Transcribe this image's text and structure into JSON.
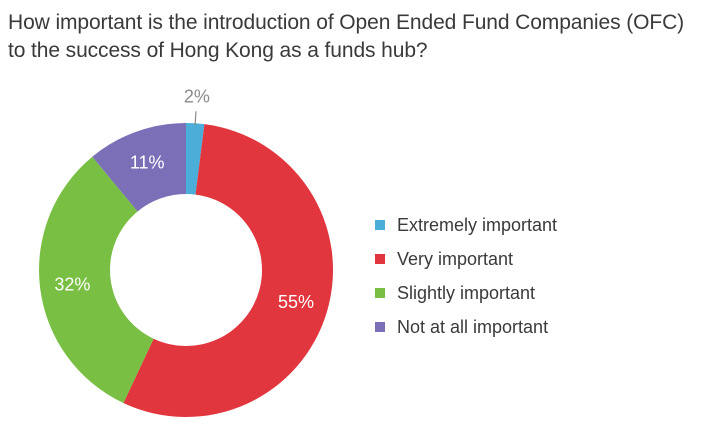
{
  "title": {
    "line1": "How important is the introduction of Open Ended Fund Companies (OFC)",
    "line2": "to the success of Hong Kong as a funds hub?"
  },
  "chart_data": {
    "type": "pie",
    "donut": true,
    "title": "How important is the introduction of Open Ended Fund Companies (OFC) to the success of Hong Kong as a funds hub?",
    "unit": "%",
    "legend_position": "right",
    "slices": [
      {
        "label": "Extremely important",
        "value": 2,
        "display": "2%",
        "color": "#4aaed9",
        "label_color": "#8a8a8a",
        "label_outside": true
      },
      {
        "label": "Very important",
        "value": 55,
        "display": "55%",
        "color": "#e2363f",
        "label_color": "#ffffff",
        "label_outside": false
      },
      {
        "label": "Slightly important",
        "value": 32,
        "display": "32%",
        "color": "#79bf43",
        "label_color": "#ffffff",
        "label_outside": false
      },
      {
        "label": "Not at all important",
        "value": 11,
        "display": "11%",
        "color": "#7b6fb8",
        "label_color": "#ffffff",
        "label_outside": false
      }
    ]
  }
}
